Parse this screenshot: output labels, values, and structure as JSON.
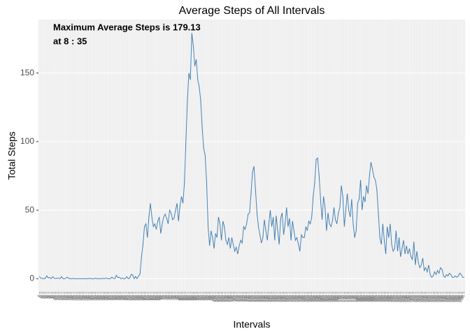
{
  "chart_data": {
    "type": "line",
    "title": "Average Steps of All Intervals",
    "x_label": "Intervals",
    "y_label": "Total Steps",
    "annotations": [
      "Maximum Average Steps is 179.13",
      "at  8 : 35"
    ],
    "color": "#4682B4",
    "ylim": [
      -9.5,
      189
    ],
    "yticks": [
      0,
      50,
      100,
      150
    ],
    "grid": true,
    "categories": [
      "0",
      "5",
      "10",
      "15",
      "20",
      "25",
      "30",
      "35",
      "40",
      "45",
      "50",
      "55",
      "100",
      "105",
      "110",
      "115",
      "120",
      "125",
      "130",
      "135",
      "140",
      "145",
      "150",
      "155",
      "200",
      "205",
      "210",
      "215",
      "220",
      "225",
      "230",
      "235",
      "240",
      "245",
      "250",
      "255",
      "300",
      "305",
      "310",
      "315",
      "320",
      "325",
      "330",
      "335",
      "340",
      "345",
      "350",
      "355",
      "400",
      "405",
      "410",
      "415",
      "420",
      "425",
      "430",
      "435",
      "440",
      "445",
      "450",
      "455",
      "500",
      "505",
      "510",
      "515",
      "520",
      "525",
      "530",
      "535",
      "540",
      "545",
      "550",
      "555",
      "600",
      "605",
      "610",
      "615",
      "620",
      "625",
      "630",
      "635",
      "640",
      "645",
      "650",
      "655",
      "700",
      "705",
      "710",
      "715",
      "720",
      "725",
      "730",
      "735",
      "740",
      "745",
      "750",
      "755",
      "800",
      "805",
      "810",
      "815",
      "820",
      "825",
      "830",
      "835",
      "840",
      "845",
      "850",
      "855",
      "900",
      "905",
      "910",
      "915",
      "920",
      "925",
      "930",
      "935",
      "940",
      "945",
      "950",
      "955",
      "1000",
      "1005",
      "1010",
      "1015",
      "1020",
      "1025",
      "1030",
      "1035",
      "1040",
      "1045",
      "1050",
      "1055",
      "1100",
      "1105",
      "1110",
      "1115",
      "1120",
      "1125",
      "1130",
      "1135",
      "1140",
      "1145",
      "1150",
      "1155",
      "1200",
      "1205",
      "1210",
      "1215",
      "1220",
      "1225",
      "1230",
      "1235",
      "1240",
      "1245",
      "1250",
      "1255",
      "1300",
      "1305",
      "1310",
      "1315",
      "1320",
      "1325",
      "1330",
      "1335",
      "1340",
      "1345",
      "1350",
      "1355",
      "1400",
      "1405",
      "1410",
      "1415",
      "1420",
      "1425",
      "1430",
      "1435",
      "1440",
      "1445",
      "1450",
      "1455",
      "1500",
      "1505",
      "1510",
      "1515",
      "1520",
      "1525",
      "1530",
      "1535",
      "1540",
      "1545",
      "1550",
      "1555",
      "1600",
      "1605",
      "1610",
      "1615",
      "1620",
      "1625",
      "1630",
      "1635",
      "1640",
      "1645",
      "1650",
      "1655",
      "1700",
      "1705",
      "1710",
      "1715",
      "1720",
      "1725",
      "1730",
      "1735",
      "1740",
      "1745",
      "1750",
      "1755",
      "1800",
      "1805",
      "1810",
      "1815",
      "1820",
      "1825",
      "1830",
      "1835",
      "1840",
      "1845",
      "1850",
      "1855",
      "1900",
      "1905",
      "1910",
      "1915",
      "1920",
      "1925",
      "1930",
      "1935",
      "1940",
      "1945",
      "1950",
      "1955",
      "2000",
      "2005",
      "2010",
      "2015",
      "2020",
      "2025",
      "2030",
      "2035",
      "2040",
      "2045",
      "2050",
      "2055",
      "2100",
      "2105",
      "2110",
      "2115",
      "2120",
      "2125",
      "2130",
      "2135",
      "2140",
      "2145",
      "2150",
      "2155",
      "2200",
      "2205",
      "2210",
      "2215",
      "2220",
      "2225",
      "2230",
      "2235",
      "2240",
      "2245",
      "2250",
      "2255",
      "2300",
      "2305",
      "2310",
      "2315",
      "2320",
      "2325",
      "2330",
      "2335",
      "2340",
      "2345",
      "2350",
      "2355"
    ],
    "values": [
      1.7,
      0.3,
      0.1,
      0.2,
      0.1,
      2.1,
      0.5,
      0.9,
      0,
      1.5,
      0.3,
      0.1,
      0.3,
      0.5,
      0,
      1.5,
      0,
      0,
      0.4,
      1.1,
      0,
      0.1,
      0,
      0.2,
      0,
      0,
      0,
      0,
      0,
      0,
      0,
      0.1,
      0,
      0,
      0.3,
      0,
      0,
      0,
      0.4,
      0,
      0,
      0.1,
      0,
      0.2,
      0,
      0.5,
      0,
      0,
      0,
      1.2,
      0.2,
      0,
      2.5,
      0.8,
      1.1,
      0,
      0.5,
      0,
      0,
      1.5,
      0,
      0.4,
      3.1,
      2.9,
      0,
      1.6,
      0,
      2,
      3.4,
      16,
      25,
      38,
      40,
      30,
      45,
      55,
      45,
      38,
      40,
      36,
      42,
      45,
      33,
      40,
      45,
      47,
      44,
      40,
      50,
      48,
      43,
      44,
      50,
      55,
      42,
      53,
      60,
      55,
      70,
      100,
      130,
      150,
      145,
      179.13,
      170,
      155,
      160,
      145,
      140,
      130,
      110,
      95,
      90,
      70,
      38,
      24,
      35,
      30,
      22,
      33,
      30,
      45,
      40,
      28,
      42,
      38,
      28,
      25,
      30,
      22,
      30,
      25,
      20,
      23,
      18,
      24,
      28,
      26,
      38,
      36,
      40,
      47,
      48,
      62,
      78,
      82,
      65,
      48,
      38,
      32,
      26,
      30,
      43,
      35,
      28,
      40,
      50,
      38,
      45,
      28,
      46,
      35,
      25,
      44,
      48,
      32,
      40,
      52,
      38,
      44,
      28,
      42,
      35,
      28,
      30,
      25,
      20,
      32,
      30,
      30,
      38,
      35,
      42,
      40,
      45,
      60,
      70,
      87,
      88,
      75,
      57,
      43,
      60,
      52,
      35,
      48,
      40,
      38,
      42,
      52,
      43,
      40,
      48,
      52,
      68,
      60,
      38,
      50,
      62,
      50,
      45,
      58,
      40,
      30,
      35,
      55,
      58,
      72,
      50,
      60,
      56,
      68,
      62,
      75,
      85,
      80,
      74,
      72,
      65,
      48,
      30,
      25,
      40,
      28,
      18,
      38,
      30,
      40,
      25,
      20,
      22,
      35,
      20,
      30,
      16,
      22,
      28,
      18,
      24,
      18,
      22,
      16,
      14,
      27,
      10,
      20,
      12,
      8,
      10,
      15,
      6,
      8,
      5,
      10,
      3,
      1,
      2,
      5,
      3,
      6,
      4,
      8,
      7,
      2,
      1,
      3,
      2,
      4,
      3,
      1,
      1,
      2,
      1,
      2,
      4,
      3,
      1,
      1
    ]
  }
}
